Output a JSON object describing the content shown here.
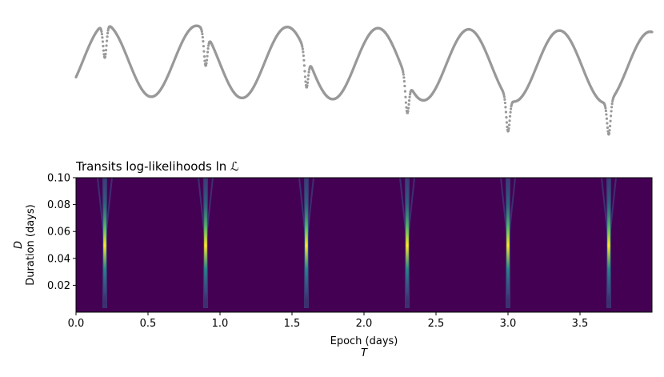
{
  "chart_data": [
    {
      "type": "scatter",
      "title": "",
      "xlabel": "",
      "ylabel": "",
      "axes_visible": false,
      "marker_color": "#999999",
      "description_of_shape": "quasi-periodic sinusoidal variability with narrow transit dips",
      "x_range": [
        0.0,
        4.0
      ],
      "period": 0.7,
      "first_transit": 0.2,
      "transit_epochs": [
        0.2,
        0.9,
        1.6,
        2.3,
        3.0,
        3.7
      ]
    },
    {
      "type": "heatmap",
      "title": "Transits log-likelihoods ln ℒ",
      "xlabel": "Epoch (days)",
      "xsymbol": "T",
      "ylabel": "Duration (days)",
      "ysymbol": "D",
      "xlim": [
        0.0,
        4.0
      ],
      "ylim": [
        0.0,
        0.1
      ],
      "xticks": [
        "0.0",
        "0.5",
        "1.0",
        "1.5",
        "2.0",
        "2.5",
        "3.0",
        "3.5"
      ],
      "xtick_values": [
        0.0,
        0.5,
        1.0,
        1.5,
        2.0,
        2.5,
        3.0,
        3.5
      ],
      "yticks": [
        "0.02",
        "0.04",
        "0.06",
        "0.08",
        "0.10"
      ],
      "ytick_values": [
        0.02,
        0.04,
        0.06,
        0.08,
        0.1
      ],
      "colormap": "viridis",
      "background_color": "#440154",
      "peak_epochs": [
        0.2,
        0.9,
        1.6,
        2.3,
        3.0,
        3.7
      ],
      "peak_duration": 0.045
    }
  ]
}
